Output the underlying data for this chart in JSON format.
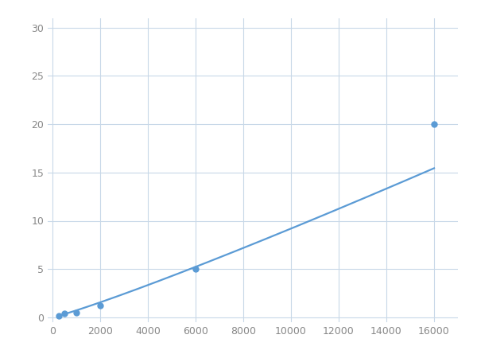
{
  "x_data": [
    250,
    500,
    1000,
    2000,
    6000,
    16000
  ],
  "y_data": [
    0.2,
    0.4,
    0.5,
    1.2,
    5.0,
    20.0
  ],
  "line_color": "#5B9BD5",
  "marker_color": "#5B9BD5",
  "marker_size": 5,
  "line_width": 1.6,
  "xlim": [
    -200,
    17000
  ],
  "ylim": [
    -0.5,
    31
  ],
  "xticks": [
    0,
    2000,
    4000,
    6000,
    8000,
    10000,
    12000,
    14000,
    16000
  ],
  "yticks": [
    0,
    5,
    10,
    15,
    20,
    25,
    30
  ],
  "background_color": "#ffffff",
  "grid_color": "#c8d8e8",
  "grid_alpha": 1.0,
  "tick_labelsize": 9,
  "tick_color": "#888888"
}
